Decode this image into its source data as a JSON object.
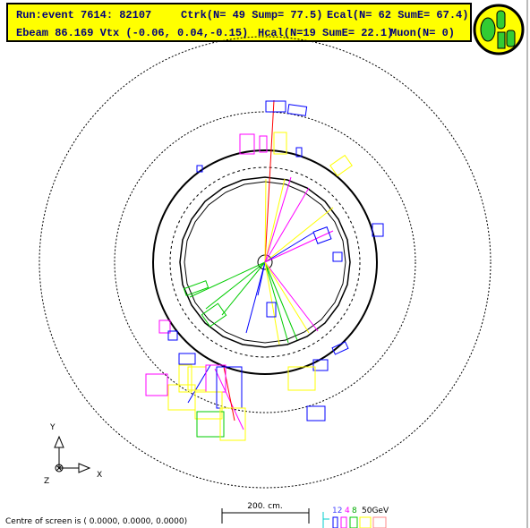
{
  "header": {
    "run_event": "Run:event 7614: 82107",
    "ctrk": "Ctrk(N= 49 Sump= 77.5)",
    "ecal": "Ecal(N= 62 SumE= 67.4)",
    "ebeam_vtx": "Ebeam 86.169 Vtx (-0.06, 0.04,-0.15)",
    "hcal": "Hcal(N=19 SumE= 22.1)",
    "muon": "Muon(N= 0)"
  },
  "axes": {
    "y": "Y",
    "x": "X",
    "z": "Z"
  },
  "scale": "200. cm.",
  "energy_legend": [
    "12",
    "4",
    "8",
    "50GeV"
  ],
  "footer": "Centre of screen is ( 0.0000, 0.0000, 0.0000)"
}
